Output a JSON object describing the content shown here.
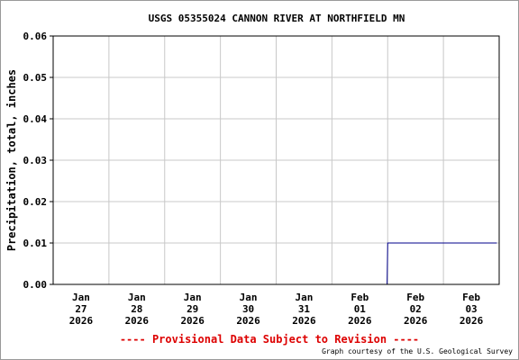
{
  "chart_data": {
    "type": "line",
    "title": "USGS 05355024 CANNON RIVER AT NORTHFIELD MN",
    "xlabel": "",
    "ylabel": "Precipitation, total, inches",
    "ylim": [
      0,
      0.06
    ],
    "yticks": [
      "0.00",
      "0.01",
      "0.02",
      "0.03",
      "0.04",
      "0.05",
      "0.06"
    ],
    "xlim": [
      "2026-01-27",
      "2026-02-04"
    ],
    "categories": [
      [
        "Jan",
        "27",
        "2026"
      ],
      [
        "Jan",
        "28",
        "2026"
      ],
      [
        "Jan",
        "29",
        "2026"
      ],
      [
        "Jan",
        "30",
        "2026"
      ],
      [
        "Jan",
        "31",
        "2026"
      ],
      [
        "Feb",
        "01",
        "2026"
      ],
      [
        "Feb",
        "02",
        "2026"
      ],
      [
        "Feb",
        "03",
        "2026"
      ]
    ],
    "grid": true,
    "series": [
      {
        "x": [
          "2026-01-27T00:00",
          "2026-02-01T23:45",
          "2026-02-02T00:00",
          "2026-02-03T23:00"
        ],
        "y": [
          0.0,
          0.0,
          0.01,
          0.01
        ]
      }
    ]
  },
  "notice": "---- Provisional Data Subject to Revision ----",
  "credit": "Graph courtesy of the U.S. Geological Survey",
  "colors": {
    "line": "#00008b",
    "grid": "#c8c8c8",
    "notice": "#dd0000"
  }
}
